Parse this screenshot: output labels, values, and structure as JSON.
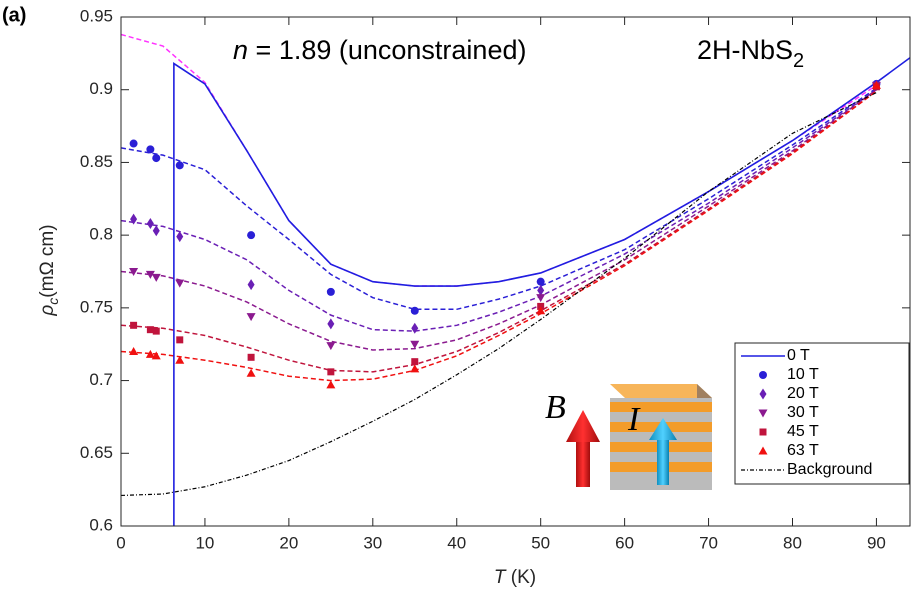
{
  "chart_data": {
    "type": "line",
    "panel_label": "(a)",
    "annotation": {
      "var": "n",
      "text": "= 1.89 (unconstrained)"
    },
    "material": {
      "base": "2H-NbS",
      "sub": "2"
    },
    "xlabel": {
      "var": "T",
      "unit": "(K)"
    },
    "ylabel": {
      "var": "ρ",
      "sub": "c",
      "unit": "(mΩ cm)"
    },
    "inset_labels": [
      "B",
      "I"
    ],
    "xlim": [
      0,
      94
    ],
    "ylim": [
      0.6,
      0.95
    ],
    "xticks": [
      0,
      10,
      20,
      30,
      40,
      50,
      60,
      70,
      80,
      90
    ],
    "yticks": [
      0.6,
      0.65,
      0.7,
      0.75,
      0.8,
      0.85,
      0.9,
      0.95
    ],
    "marker_x": [
      1.5,
      3.5,
      4.2,
      7,
      15.5,
      25,
      35,
      50,
      90
    ],
    "fit_x": [
      0,
      5,
      10,
      15,
      20,
      25,
      30,
      35,
      40,
      45,
      50,
      60,
      70,
      80,
      90
    ],
    "series": [
      {
        "name": "0 T",
        "color": "#1f1fe0",
        "style": "line",
        "x": [
          6.3,
          6.3,
          10,
          15,
          20,
          25,
          30,
          35,
          40,
          45,
          50,
          60,
          70,
          80,
          90,
          94
        ],
        "values": [
          0.6,
          0.918,
          0.904,
          0.858,
          0.81,
          0.78,
          0.768,
          0.765,
          0.765,
          0.768,
          0.774,
          0.797,
          0.83,
          0.865,
          0.905,
          0.922
        ]
      },
      {
        "name": "10 T",
        "color": "#2a1fd6",
        "style": "marker",
        "marker": "circle",
        "values": [
          0.863,
          0.859,
          0.853,
          0.848,
          0.8,
          0.761,
          0.748,
          0.768,
          0.904
        ]
      },
      {
        "name": "20 T",
        "color": "#6a1fb5",
        "style": "marker",
        "marker": "diamond",
        "values": [
          0.811,
          0.808,
          0.803,
          0.799,
          0.766,
          0.739,
          0.736,
          0.762,
          0.903
        ]
      },
      {
        "name": "30 T",
        "color": "#8b1a8f",
        "style": "marker",
        "marker": "down",
        "values": [
          0.775,
          0.773,
          0.771,
          0.767,
          0.744,
          0.724,
          0.725,
          0.757,
          0.903
        ]
      },
      {
        "name": "45 T",
        "color": "#c0143c",
        "style": "marker",
        "marker": "square",
        "values": [
          0.738,
          0.735,
          0.734,
          0.728,
          0.716,
          0.706,
          0.713,
          0.751,
          0.902
        ]
      },
      {
        "name": "63 T",
        "color": "#f01010",
        "style": "marker",
        "marker": "up",
        "values": [
          0.72,
          0.718,
          0.717,
          0.714,
          0.705,
          0.697,
          0.708,
          0.748,
          0.903
        ]
      },
      {
        "name": "Background",
        "color": "#000000",
        "style": "dashdot",
        "values": [
          0.621,
          0.622,
          0.627,
          0.635,
          0.645,
          0.658,
          0.672,
          0.687,
          0.704,
          0.722,
          0.742,
          0.784,
          0.83,
          0.87,
          0.898
        ]
      }
    ],
    "fits": [
      {
        "color": "#ff33ff",
        "values": [
          0.938,
          0.93,
          0.905,
          0.858,
          0.81,
          0.78,
          0.768,
          0.765,
          0.765,
          0.768,
          0.774,
          0.797,
          0.83,
          0.865,
          0.903
        ]
      },
      {
        "color": "#2a1fd6",
        "values": [
          0.86,
          0.855,
          0.845,
          0.82,
          0.797,
          0.773,
          0.757,
          0.749,
          0.749,
          0.756,
          0.765,
          0.79,
          0.825,
          0.862,
          0.901
        ]
      },
      {
        "color": "#6a1fb5",
        "values": [
          0.81,
          0.806,
          0.797,
          0.783,
          0.762,
          0.745,
          0.735,
          0.734,
          0.738,
          0.747,
          0.758,
          0.787,
          0.822,
          0.86,
          0.9
        ]
      },
      {
        "color": "#8b1a8f",
        "values": [
          0.775,
          0.772,
          0.765,
          0.754,
          0.739,
          0.727,
          0.721,
          0.722,
          0.728,
          0.739,
          0.752,
          0.783,
          0.82,
          0.858,
          0.9
        ]
      },
      {
        "color": "#c0143c",
        "values": [
          0.738,
          0.736,
          0.731,
          0.723,
          0.714,
          0.707,
          0.706,
          0.711,
          0.72,
          0.733,
          0.748,
          0.78,
          0.818,
          0.857,
          0.899
        ]
      },
      {
        "color": "#f01010",
        "values": [
          0.72,
          0.718,
          0.714,
          0.709,
          0.703,
          0.7,
          0.701,
          0.707,
          0.717,
          0.731,
          0.746,
          0.779,
          0.817,
          0.856,
          0.899
        ]
      }
    ]
  }
}
